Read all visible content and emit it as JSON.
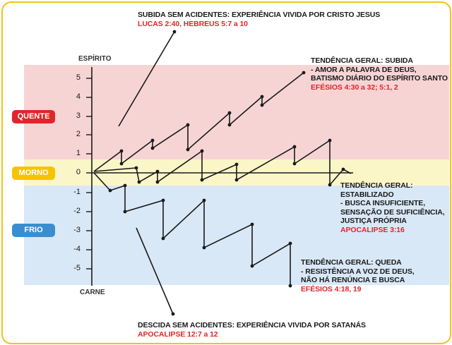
{
  "colors": {
    "border": "#f3c21a",
    "quente_band": "#f7d4d4",
    "morno_band": "#fbf6c8",
    "frio_band": "#d9e8f7",
    "quente_badge": "#e0262a",
    "morno_badge": "#f5c400",
    "frio_badge": "#3a8ed0",
    "reference_text": "#e0262a"
  },
  "axis": {
    "top_label": "ESPÍRITO",
    "bottom_label": "CARNE",
    "ticks": [
      "5",
      "4",
      "3",
      "2",
      "1",
      "0",
      "-1",
      "-2",
      "-3",
      "-4",
      "-5"
    ]
  },
  "zones": {
    "quente": "QUENTE",
    "morno": "MORNO",
    "frio": "FRIO"
  },
  "annotations": {
    "top": {
      "title": "SUBIDA SEM ACIDENTES: EXPERIÊNCIA VIVIDA POR CRISTO JESUS",
      "ref": "LUCAS 2:40, HEBREUS 5:7 a 10"
    },
    "rise": {
      "title": "TENDÊNCIA GERAL: SUBIDA",
      "lines": [
        "- AMOR A PALAVRA DE DEUS,",
        "BATISMO DIÁRIO DO ESPÍRITO SANTO"
      ],
      "ref": "EFÉSIOS 4:30 a 32; 5:1, 2"
    },
    "stable": {
      "title": "TENDÊNCIA GERAL:",
      "lines": [
        "ESTABILIZADO",
        "- BUSCA INSUFICIENTE,",
        "SENSAÇÃO DE SUFICIÊNCIA,",
        "JUSTIÇA PRÓPRIA"
      ],
      "ref": "APOCALIPSE 3:16"
    },
    "fall": {
      "title": "TENDÊNCIA GERAL: QUEDA",
      "lines": [
        "- RESISTÊNCIA A VOZ DE DEUS,",
        "NÃO HÁ RENÚNCIA E BUSCA"
      ],
      "ref": "EFÉSIOS 4:18, 19"
    },
    "bottom": {
      "title": "DESCIDA SEM ACIDENTES: EXPERIÊNCIA VIVIDA POR SATANÁS",
      "ref": "APOCALIPSE 12:7 a 12"
    }
  }
}
